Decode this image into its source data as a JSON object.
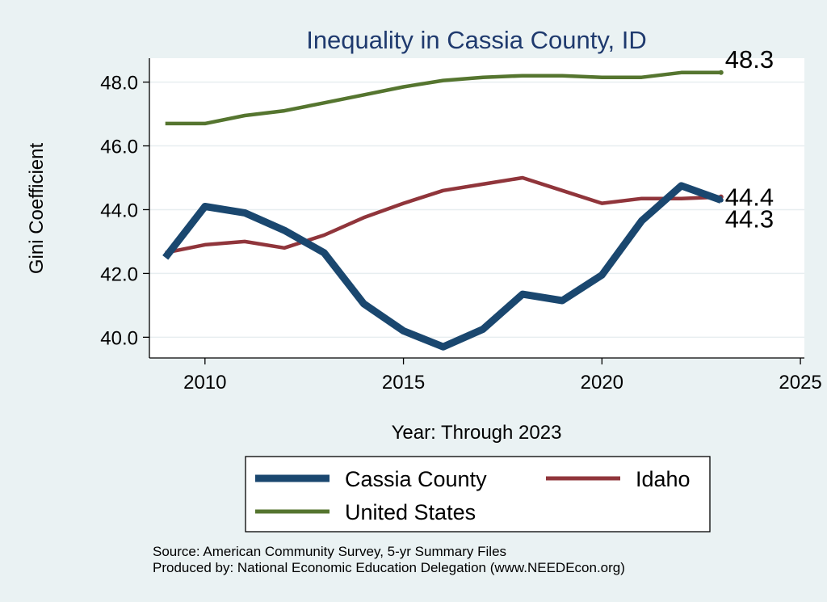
{
  "chart_data": {
    "type": "line",
    "title": "Inequality in Cassia County, ID",
    "xlabel": "Year: Through 2023",
    "ylabel": "Gini Coefficient",
    "xlim": [
      2008.6,
      2025.1
    ],
    "ylim": [
      39.35,
      48.75
    ],
    "x_ticks": [
      2010,
      2015,
      2020,
      2025
    ],
    "y_ticks": [
      40.0,
      42.0,
      44.0,
      46.0,
      48.0
    ],
    "x": [
      2009,
      2010,
      2011,
      2012,
      2013,
      2014,
      2015,
      2016,
      2017,
      2018,
      2019,
      2020,
      2021,
      2022,
      2023
    ],
    "series": [
      {
        "name": "Cassia County",
        "color": "#1a476f",
        "values": [
          42.5,
          44.1,
          43.9,
          43.35,
          42.65,
          41.05,
          40.2,
          39.7,
          40.25,
          41.35,
          41.15,
          41.95,
          43.65,
          44.75,
          44.3
        ],
        "end_label": "44.3"
      },
      {
        "name": "Idaho",
        "color": "#90353b",
        "values": [
          42.65,
          42.9,
          43.0,
          42.8,
          43.2,
          43.75,
          44.2,
          44.6,
          44.8,
          45.0,
          44.6,
          44.2,
          44.35,
          44.35,
          44.4
        ],
        "end_label": "44.4"
      },
      {
        "name": "United States",
        "color": "#55752f",
        "values": [
          46.7,
          46.7,
          46.95,
          47.1,
          47.35,
          47.6,
          47.85,
          48.05,
          48.15,
          48.2,
          48.2,
          48.15,
          48.15,
          48.3,
          48.3
        ],
        "end_label": "48.3"
      }
    ],
    "legend": {
      "position": "bottom",
      "items": [
        "Cassia County",
        "Idaho",
        "United States"
      ]
    },
    "grid": true
  },
  "source_lines": [
    "Source: American Community Survey, 5-yr Summary Files",
    "Produced by: National Economic Education Delegation (www.NEEDEcon.org)"
  ]
}
